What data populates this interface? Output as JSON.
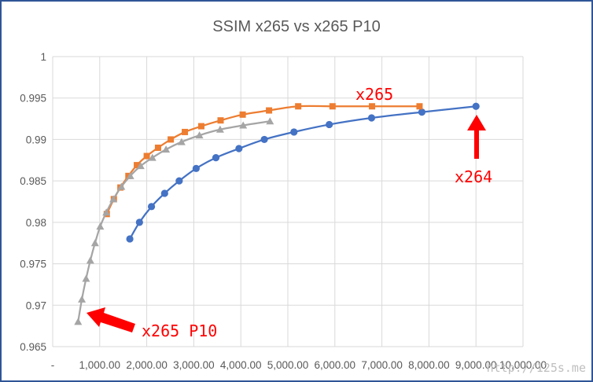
{
  "colors": {
    "x264": "#4472c4",
    "x265": "#ed7d31",
    "x265_p10": "#a5a5a5",
    "annotation": "#ff0000",
    "grid": "#d9d9d9",
    "frame": "#2f5597"
  },
  "chart_data": {
    "type": "scatter",
    "title": "SSIM x265 vs x265 P10",
    "xlim": [
      0,
      10000
    ],
    "ylim": [
      0.965,
      1
    ],
    "x_ticks": [
      "-",
      "1,000.00",
      "2,000.00",
      "3,000.00",
      "4,000.00",
      "5,000.00",
      "6,000.00",
      "7,000.00",
      "8,000.00",
      "9,000.00",
      "10,000.00"
    ],
    "y_ticks": [
      "0.965",
      "0.97",
      "0.975",
      "0.98",
      "0.985",
      "0.99",
      "0.995",
      "1"
    ],
    "grid": true,
    "legend": "none",
    "series": [
      {
        "key": "x264",
        "marker": "circle",
        "color": "#4472c4",
        "x": [
          1640,
          1845,
          2100,
          2380,
          2690,
          3050,
          3470,
          3960,
          4500,
          5130,
          5880,
          6780,
          7850,
          9000
        ],
        "y": [
          0.978,
          0.98,
          0.9819,
          0.9835,
          0.985,
          0.9865,
          0.9878,
          0.9889,
          0.99,
          0.9909,
          0.9918,
          0.9926,
          0.9933,
          0.994
        ]
      },
      {
        "key": "x265",
        "marker": "square",
        "color": "#ed7d31",
        "x": [
          1150,
          1300,
          1440,
          1610,
          1790,
          2000,
          2240,
          2510,
          2810,
          3160,
          3570,
          4040,
          4600,
          5220,
          5950,
          6790,
          7800
        ],
        "y": [
          0.981,
          0.9828,
          0.9842,
          0.9856,
          0.9869,
          0.988,
          0.989,
          0.99,
          0.9909,
          0.9916,
          0.9923,
          0.993,
          0.9935,
          0.994,
          0.994,
          0.994,
          0.994
        ]
      },
      {
        "key": "x265_p10",
        "marker": "triangle",
        "color": "#a5a5a5",
        "x": [
          540,
          620,
          710,
          800,
          900,
          1010,
          1140,
          1290,
          1460,
          1650,
          1870,
          2120,
          2410,
          2740,
          3120,
          3560,
          4050,
          4620
        ],
        "y": [
          0.968,
          0.9707,
          0.9732,
          0.9754,
          0.9775,
          0.9795,
          0.9812,
          0.9828,
          0.9843,
          0.9856,
          0.9868,
          0.9878,
          0.9888,
          0.9897,
          0.9905,
          0.9912,
          0.9917,
          0.9922
        ]
      }
    ],
    "annotations": [
      {
        "text": "x265"
      },
      {
        "text": "x264"
      },
      {
        "text": "x265 P10"
      }
    ]
  },
  "watermark": "http://125s.me"
}
